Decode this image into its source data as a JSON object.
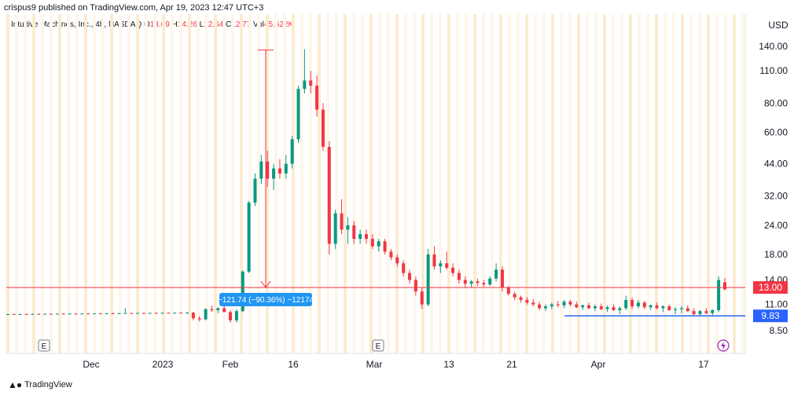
{
  "publisher": "crispus9 published on TradingView.com, Apr 19, 2023 12:47 UTC+3",
  "legend": {
    "symbol": "Intuitive Machines, Inc., 4h, NASDAQ",
    "o_label": "O",
    "o": "13.69",
    "h_label": "H",
    "h": "14.26",
    "l_label": "L",
    "l": "12.64",
    "c_label": "C",
    "c": "12.77",
    "vol_label": "Vol",
    "vol": "45.522K"
  },
  "footer": {
    "brand": "TradingView",
    "logo": "tv-logo-icon"
  },
  "colors": {
    "up": "#089981",
    "down": "#f23645",
    "support": "#2962ff",
    "grid": "#f0f3fa"
  },
  "chart_data": {
    "type": "candlestick",
    "y_axis_unit": "USD",
    "y_scale": "log",
    "y_ticks": [
      140,
      110,
      80,
      60,
      44,
      32,
      24,
      18,
      14,
      11,
      8.5
    ],
    "y_tick_labels": [
      "140.00",
      "110.00",
      "80.00",
      "60.00",
      "44.00",
      "32.00",
      "24.00",
      "18.00",
      "14.00",
      "11.00",
      "8.50"
    ],
    "x_tick_labels": [
      "Dec",
      "2023",
      "Feb",
      "16",
      "Mar",
      "13",
      "21",
      "Apr",
      "17"
    ],
    "price_labels": [
      {
        "value": 13.0,
        "text": "13.00",
        "color": "#f23645"
      },
      {
        "value": 9.83,
        "text": "9.83",
        "color": "#2962ff"
      }
    ],
    "measure_label": "−121.74 (−90.36%) −12174",
    "measure_from": 135,
    "measure_to": 13.0,
    "event_markers": [
      "E",
      "E"
    ],
    "candles": [
      [
        9.95,
        10.02,
        9.9,
        10.0
      ],
      [
        10.0,
        10.05,
        9.92,
        9.98
      ],
      [
        9.98,
        10.03,
        9.94,
        10.01
      ],
      [
        10.01,
        10.06,
        9.95,
        9.99
      ],
      [
        9.99,
        10.04,
        9.93,
        10.02
      ],
      [
        10.02,
        10.07,
        9.96,
        10.0
      ],
      [
        10.0,
        10.05,
        9.95,
        10.03
      ],
      [
        10.03,
        10.08,
        9.97,
        10.01
      ],
      [
        10.01,
        10.06,
        9.96,
        10.04
      ],
      [
        10.04,
        10.09,
        9.98,
        10.02
      ],
      [
        10.02,
        10.07,
        9.97,
        10.05
      ],
      [
        10.05,
        10.1,
        9.99,
        10.03
      ],
      [
        10.03,
        10.08,
        9.98,
        10.06
      ],
      [
        10.06,
        10.11,
        10.0,
        10.04
      ],
      [
        10.04,
        10.09,
        9.99,
        10.07
      ],
      [
        10.07,
        10.12,
        10.01,
        10.05
      ],
      [
        10.05,
        10.1,
        10.0,
        10.08
      ],
      [
        10.08,
        10.13,
        10.02,
        10.06
      ],
      [
        10.06,
        10.11,
        10.01,
        10.09
      ],
      [
        10.09,
        10.6,
        10.05,
        10.1
      ],
      [
        10.1,
        10.14,
        10.03,
        10.08
      ],
      [
        10.08,
        10.13,
        10.02,
        10.11
      ],
      [
        10.11,
        10.15,
        10.04,
        10.09
      ],
      [
        10.09,
        10.14,
        10.03,
        10.12
      ],
      [
        10.12,
        10.16,
        10.05,
        10.1
      ],
      [
        10.1,
        10.15,
        10.04,
        10.13
      ],
      [
        10.13,
        10.17,
        10.06,
        10.11
      ],
      [
        10.11,
        10.16,
        10.05,
        10.14
      ],
      [
        10.14,
        10.18,
        10.07,
        10.12
      ],
      [
        10.12,
        10.2,
        10.05,
        10.15
      ],
      [
        10.15,
        10.2,
        9.4,
        9.6
      ],
      [
        9.6,
        9.8,
        9.3,
        9.5
      ],
      [
        9.5,
        10.6,
        9.4,
        10.5
      ],
      [
        10.5,
        10.9,
        10.2,
        10.4
      ],
      [
        10.4,
        10.7,
        10.1,
        10.6
      ],
      [
        10.6,
        11.0,
        10.3,
        10.2
      ],
      [
        10.2,
        10.4,
        9.2,
        9.4
      ],
      [
        9.4,
        10.5,
        9.2,
        10.3
      ],
      [
        10.3,
        15.4,
        10.2,
        15.2
      ],
      [
        15.2,
        30.5,
        15.0,
        30.0
      ],
      [
        30.0,
        40.0,
        29.0,
        38.0
      ],
      [
        38.0,
        48.0,
        36.0,
        45.0
      ],
      [
        45.0,
        50.0,
        35.0,
        38.0
      ],
      [
        38.0,
        44.0,
        34.0,
        42.0
      ],
      [
        42.0,
        46.0,
        38.0,
        40.0
      ],
      [
        40.0,
        48.0,
        38.0,
        44.0
      ],
      [
        44.0,
        58.0,
        42.0,
        56.0
      ],
      [
        56.0,
        95.0,
        54.0,
        92.0
      ],
      [
        92.0,
        136.0,
        88.0,
        100.0
      ],
      [
        100.0,
        110.0,
        88.0,
        95.0
      ],
      [
        95.0,
        105.0,
        70.0,
        75.0
      ],
      [
        75.0,
        80.0,
        50.0,
        52.0
      ],
      [
        52.0,
        55.0,
        18.0,
        20.0
      ],
      [
        20.0,
        28.0,
        19.0,
        27.0
      ],
      [
        27.0,
        31.0,
        22.0,
        23.0
      ],
      [
        23.0,
        26.0,
        20.0,
        24.0
      ],
      [
        24.0,
        25.0,
        20.0,
        21.0
      ],
      [
        21.0,
        23.0,
        20.0,
        22.0
      ],
      [
        22.0,
        23.0,
        20.0,
        21.0
      ],
      [
        21.0,
        22.0,
        19.0,
        19.5
      ],
      [
        19.5,
        21.0,
        18.5,
        20.5
      ],
      [
        20.5,
        21.0,
        18.0,
        18.5
      ],
      [
        18.5,
        19.0,
        17.0,
        17.5
      ],
      [
        17.5,
        18.0,
        16.0,
        16.5
      ],
      [
        16.5,
        17.0,
        14.5,
        15.0
      ],
      [
        15.0,
        15.5,
        13.5,
        14.0
      ],
      [
        14.0,
        14.5,
        12.0,
        12.5
      ],
      [
        12.5,
        13.0,
        10.5,
        11.0
      ],
      [
        11.0,
        19.0,
        10.8,
        18.0
      ],
      [
        18.0,
        19.5,
        15.5,
        16.0
      ],
      [
        16.0,
        17.0,
        15.0,
        16.5
      ],
      [
        16.5,
        18.5,
        15.5,
        15.8
      ],
      [
        15.8,
        16.5,
        14.5,
        15.0
      ],
      [
        15.0,
        15.5,
        13.5,
        14.0
      ],
      [
        14.0,
        14.5,
        13.0,
        13.5
      ],
      [
        13.5,
        14.0,
        13.0,
        13.8
      ],
      [
        13.8,
        14.2,
        13.2,
        13.6
      ],
      [
        13.6,
        14.0,
        13.1,
        13.4
      ],
      [
        13.4,
        14.5,
        13.2,
        14.2
      ],
      [
        14.2,
        16.5,
        13.8,
        15.5
      ],
      [
        15.5,
        16.0,
        12.5,
        13.0
      ],
      [
        13.0,
        13.2,
        12.0,
        12.2
      ],
      [
        12.2,
        12.5,
        11.5,
        11.8
      ],
      [
        11.8,
        12.0,
        11.2,
        11.5
      ],
      [
        11.5,
        11.8,
        11.0,
        11.2
      ],
      [
        11.2,
        11.6,
        10.8,
        11.0
      ],
      [
        11.0,
        11.3,
        10.4,
        10.6
      ],
      [
        10.6,
        11.0,
        10.3,
        10.8
      ],
      [
        10.8,
        11.2,
        10.5,
        11.0
      ],
      [
        11.0,
        11.4,
        10.7,
        10.9
      ],
      [
        10.9,
        11.5,
        10.6,
        11.3
      ],
      [
        11.3,
        11.5,
        10.8,
        11.0
      ],
      [
        11.0,
        11.3,
        10.6,
        10.7
      ],
      [
        10.7,
        11.0,
        10.4,
        10.9
      ],
      [
        10.9,
        11.2,
        10.5,
        10.6
      ],
      [
        10.6,
        11.0,
        10.3,
        10.8
      ],
      [
        10.8,
        11.1,
        10.4,
        10.5
      ],
      [
        10.5,
        10.9,
        10.2,
        10.7
      ],
      [
        10.7,
        11.0,
        10.3,
        10.4
      ],
      [
        10.4,
        10.8,
        10.0,
        10.6
      ],
      [
        10.6,
        12.0,
        10.4,
        11.5
      ],
      [
        11.5,
        11.8,
        10.5,
        10.8
      ],
      [
        10.8,
        11.5,
        10.6,
        11.2
      ],
      [
        11.2,
        11.4,
        10.5,
        10.7
      ],
      [
        10.7,
        11.0,
        10.4,
        10.9
      ],
      [
        10.9,
        11.2,
        10.5,
        10.6
      ],
      [
        10.6,
        10.9,
        10.2,
        10.8
      ],
      [
        10.8,
        11.0,
        10.3,
        10.4
      ],
      [
        10.4,
        10.7,
        10.0,
        10.5
      ],
      [
        10.5,
        10.8,
        10.1,
        10.6
      ],
      [
        10.6,
        10.9,
        10.2,
        10.3
      ],
      [
        10.3,
        10.6,
        9.8,
        10.0
      ],
      [
        10.0,
        10.4,
        9.8,
        10.3
      ],
      [
        10.3,
        10.6,
        10.0,
        10.1
      ],
      [
        10.1,
        10.5,
        9.9,
        10.4
      ],
      [
        10.4,
        14.5,
        10.2,
        14.0
      ],
      [
        13.69,
        14.26,
        12.64,
        12.77
      ]
    ]
  }
}
